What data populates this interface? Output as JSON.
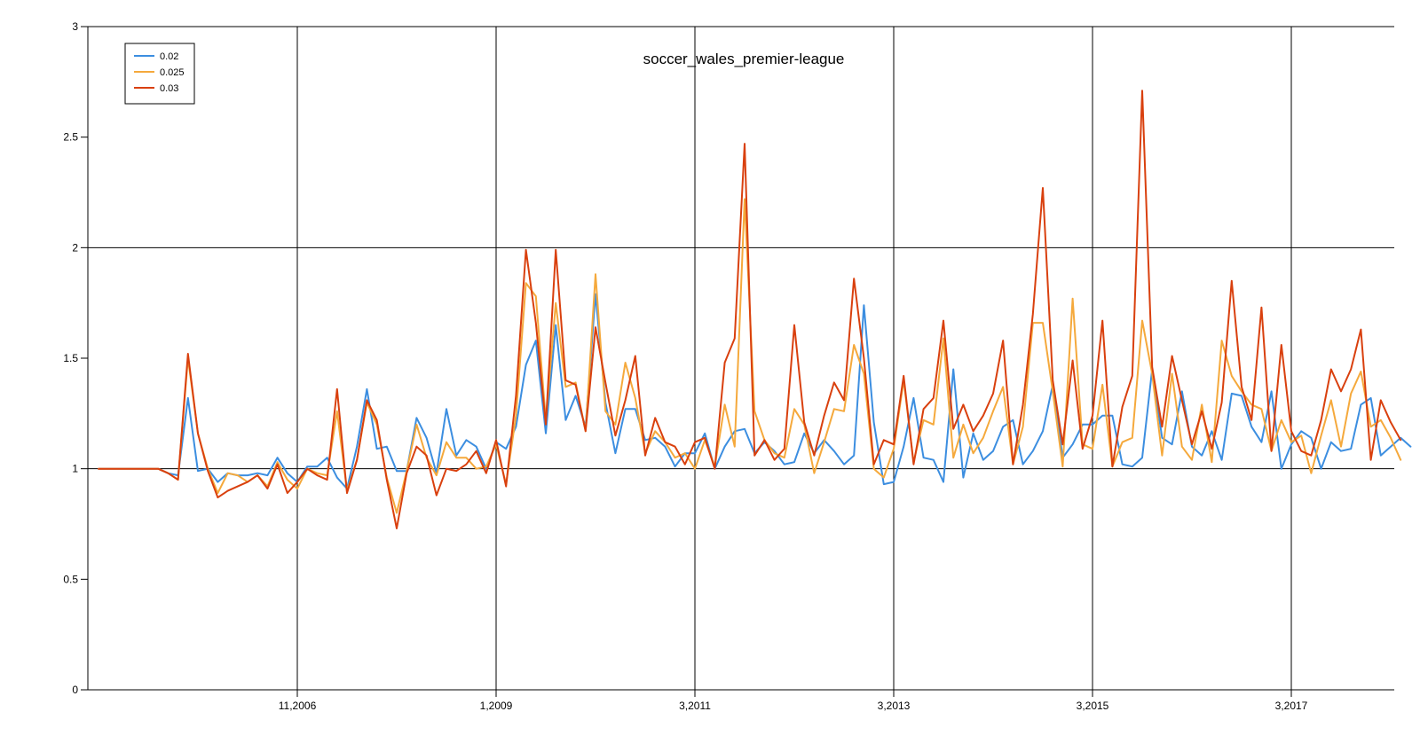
{
  "chart_data": {
    "type": "line",
    "title": "soccer_wales_premier-league",
    "xlabel": "",
    "ylabel": "",
    "ylim": [
      0,
      3
    ],
    "x_range_index": [
      0,
      132
    ],
    "grid": true,
    "legend_position": "top-left",
    "y_ticks": [
      0,
      0.5,
      1,
      1.5,
      2,
      2.5,
      3
    ],
    "y_tick_labels": [
      "0",
      "0.5",
      "1",
      "1.5",
      "2",
      "2.5",
      "3"
    ],
    "x_ticks": [
      {
        "index": 20,
        "label": "11,2006"
      },
      {
        "index": 40,
        "label": "1,2009"
      },
      {
        "index": 60,
        "label": "3,2011"
      },
      {
        "index": 80,
        "label": "3,2013"
      },
      {
        "index": 100,
        "label": "3,2015"
      },
      {
        "index": 120,
        "label": "3,2017"
      }
    ],
    "series": [
      {
        "name": "0.02",
        "color": "#3c8ee0",
        "values": [
          1,
          1,
          1,
          1,
          1,
          1,
          1,
          0.98,
          0.97,
          1.32,
          0.99,
          1,
          0.94,
          0.98,
          0.97,
          0.97,
          0.98,
          0.97,
          1.05,
          0.98,
          0.94,
          1.01,
          1.01,
          1.05,
          0.96,
          0.91,
          1.1,
          1.36,
          1.09,
          1.1,
          0.99,
          0.99,
          1.23,
          1.14,
          0.98,
          1.27,
          1.06,
          1.13,
          1.1,
          1,
          1.12,
          1.09,
          1.19,
          1.47,
          1.58,
          1.16,
          1.65,
          1.22,
          1.33,
          1.19,
          1.79,
          1.3,
          1.07,
          1.27,
          1.27,
          1.13,
          1.14,
          1.1,
          1.01,
          1.07,
          1.07,
          1.16,
          1.0,
          1.1,
          1.17,
          1.18,
          1.07,
          1.12,
          1.08,
          1.02,
          1.03,
          1.16,
          1.07,
          1.13,
          1.08,
          1.02,
          1.06,
          1.74,
          1.21,
          0.93,
          0.94,
          1.1,
          1.32,
          1.05,
          1.04,
          0.94,
          1.45,
          0.96,
          1.16,
          1.04,
          1.08,
          1.19,
          1.22,
          1.02,
          1.08,
          1.17,
          1.38,
          1.05,
          1.11,
          1.2,
          1.2,
          1.24,
          1.24,
          1.02,
          1.01,
          1.05,
          1.45,
          1.14,
          1.11,
          1.35,
          1.1,
          1.06,
          1.17,
          1.04,
          1.34,
          1.33,
          1.19,
          1.12,
          1.35,
          1.0,
          1.11,
          1.17,
          1.14,
          1.0,
          1.12,
          1.08,
          1.09,
          1.29,
          1.32,
          1.06,
          1.1,
          1.14,
          1.1
        ]
      },
      {
        "name": "0.025",
        "color": "#f5a93c",
        "values": [
          1,
          1,
          1,
          1,
          1,
          1,
          1,
          0.98,
          0.95,
          1.5,
          1.16,
          1,
          0.89,
          0.98,
          0.97,
          0.94,
          0.97,
          0.92,
          1.03,
          0.95,
          0.91,
          1.0,
          0.98,
          0.97,
          1.26,
          0.9,
          1.04,
          1.3,
          1.2,
          0.96,
          0.8,
          0.99,
          1.2,
          1.05,
          0.97,
          1.12,
          1.05,
          1.05,
          1.0,
          1.01,
          1.11,
          0.93,
          1.24,
          1.84,
          1.78,
          1.22,
          1.75,
          1.37,
          1.39,
          1.17,
          1.88,
          1.26,
          1.2,
          1.48,
          1.32,
          1.07,
          1.17,
          1.12,
          1.05,
          1.07,
          1.0,
          1.13,
          1.01,
          1.29,
          1.1,
          2.22,
          1.26,
          1.13,
          1.07,
          1.05,
          1.27,
          1.2,
          0.98,
          1.12,
          1.27,
          1.26,
          1.56,
          1.43,
          1.0,
          0.96,
          1.09,
          1.4,
          1.03,
          1.22,
          1.2,
          1.59,
          1.05,
          1.2,
          1.07,
          1.14,
          1.26,
          1.37,
          1.02,
          1.19,
          1.66,
          1.66,
          1.35,
          1.01,
          1.77,
          1.11,
          1.09,
          1.38,
          1.01,
          1.12,
          1.14,
          1.67,
          1.43,
          1.06,
          1.43,
          1.1,
          1.04,
          1.29,
          1.03,
          1.58,
          1.42,
          1.35,
          1.29,
          1.27,
          1.08,
          1.22,
          1.12,
          1.15,
          0.98,
          1.15,
          1.31,
          1.1,
          1.34,
          1.44,
          1.19,
          1.22,
          1.14,
          1.04
        ]
      },
      {
        "name": "0.03",
        "color": "#d9400e",
        "values": [
          1,
          1,
          1,
          1,
          1,
          1,
          1,
          0.98,
          0.95,
          1.52,
          1.16,
          0.99,
          0.87,
          0.9,
          0.92,
          0.94,
          0.97,
          0.91,
          1.02,
          0.89,
          0.94,
          1.0,
          0.97,
          0.95,
          1.36,
          0.89,
          1.04,
          1.31,
          1.22,
          0.95,
          0.73,
          0.98,
          1.1,
          1.06,
          0.88,
          1.0,
          0.99,
          1.02,
          1.08,
          0.98,
          1.13,
          0.92,
          1.33,
          1.99,
          1.66,
          1.2,
          1.99,
          1.4,
          1.38,
          1.17,
          1.64,
          1.39,
          1.15,
          1.31,
          1.51,
          1.06,
          1.23,
          1.12,
          1.1,
          1.02,
          1.12,
          1.14,
          1.0,
          1.48,
          1.59,
          2.47,
          1.06,
          1.13,
          1.04,
          1.09,
          1.65,
          1.21,
          1.06,
          1.24,
          1.39,
          1.31,
          1.86,
          1.5,
          1.02,
          1.13,
          1.11,
          1.42,
          1.02,
          1.27,
          1.32,
          1.67,
          1.18,
          1.29,
          1.17,
          1.24,
          1.34,
          1.58,
          1.02,
          1.29,
          1.7,
          2.27,
          1.4,
          1.11,
          1.49,
          1.09,
          1.24,
          1.67,
          1.01,
          1.28,
          1.42,
          2.71,
          1.46,
          1.19,
          1.51,
          1.31,
          1.11,
          1.26,
          1.09,
          1.3,
          1.85,
          1.37,
          1.22,
          1.73,
          1.08,
          1.56,
          1.17,
          1.08,
          1.06,
          1.22,
          1.45,
          1.35,
          1.45,
          1.63,
          1.04,
          1.31,
          1.21,
          1.13
        ]
      }
    ]
  }
}
